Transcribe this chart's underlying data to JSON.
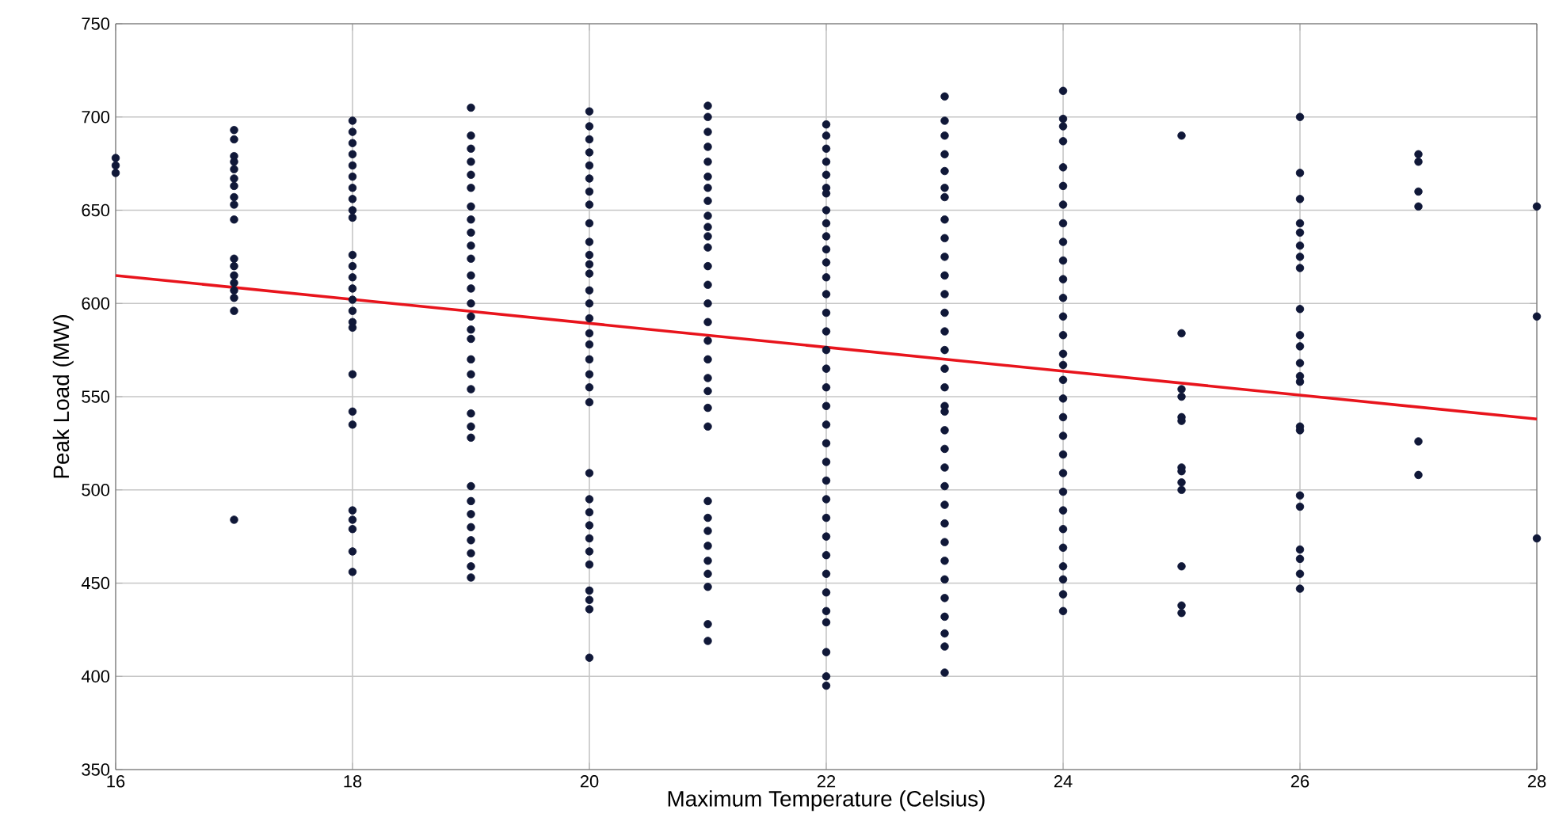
{
  "chart_data": {
    "type": "scatter",
    "xlabel": "Maximum Temperature (Celsius)",
    "ylabel": "Peak Load (MW)",
    "xlim": [
      16,
      28
    ],
    "ylim": [
      350,
      750
    ],
    "xticks": [
      16,
      18,
      20,
      22,
      24,
      26,
      28
    ],
    "yticks": [
      350,
      400,
      450,
      500,
      550,
      600,
      650,
      700,
      750
    ],
    "grid": true,
    "series": [
      {
        "marker": "circle",
        "color": "#101838",
        "x": [
          16,
          16,
          16
        ],
        "values": [
          678,
          674,
          670
        ]
      },
      {
        "marker": "circle",
        "color": "#101838",
        "x": [
          17,
          17,
          17,
          17,
          17,
          17,
          17,
          17,
          17,
          17,
          17,
          17,
          17,
          17,
          17,
          17,
          17,
          17
        ],
        "values": [
          693,
          688,
          679,
          676,
          672,
          667,
          663,
          657,
          653,
          645,
          624,
          620,
          615,
          611,
          607,
          603,
          596,
          484
        ]
      },
      {
        "marker": "circle",
        "color": "#101838",
        "x": [
          18,
          18,
          18,
          18,
          18,
          18,
          18,
          18,
          18,
          18,
          18,
          18,
          18,
          18,
          18,
          18,
          18,
          18,
          18,
          18,
          18,
          18,
          18,
          18,
          18,
          18
        ],
        "values": [
          698,
          692,
          686,
          680,
          674,
          668,
          662,
          656,
          650,
          646,
          626,
          620,
          614,
          608,
          602,
          596,
          590,
          587,
          562,
          542,
          535,
          489,
          484,
          479,
          467,
          456
        ]
      },
      {
        "marker": "circle",
        "color": "#101838",
        "x": [
          19,
          19,
          19,
          19,
          19,
          19,
          19,
          19,
          19,
          19,
          19,
          19,
          19,
          19,
          19,
          19,
          19,
          19,
          19,
          19,
          19,
          19,
          19,
          19,
          19,
          19,
          19,
          19,
          19,
          19,
          19
        ],
        "values": [
          705,
          690,
          683,
          676,
          669,
          662,
          652,
          645,
          638,
          631,
          624,
          615,
          608,
          600,
          593,
          586,
          581,
          570,
          562,
          554,
          541,
          534,
          528,
          502,
          494,
          487,
          480,
          473,
          466,
          459,
          453
        ]
      },
      {
        "marker": "circle",
        "color": "#101838",
        "x": [
          20,
          20,
          20,
          20,
          20,
          20,
          20,
          20,
          20,
          20,
          20,
          20,
          20,
          20,
          20,
          20,
          20,
          20,
          20,
          20,
          20,
          20,
          20,
          20,
          20,
          20,
          20,
          20,
          20,
          20,
          20,
          20,
          20
        ],
        "values": [
          703,
          695,
          688,
          681,
          674,
          667,
          660,
          653,
          643,
          633,
          626,
          621,
          616,
          607,
          600,
          592,
          584,
          578,
          570,
          562,
          555,
          547,
          509,
          495,
          488,
          481,
          474,
          467,
          460,
          446,
          441,
          436,
          410
        ]
      },
      {
        "marker": "circle",
        "color": "#101838",
        "x": [
          21,
          21,
          21,
          21,
          21,
          21,
          21,
          21,
          21,
          21,
          21,
          21,
          21,
          21,
          21,
          21,
          21,
          21,
          21,
          21,
          21,
          21,
          21,
          21,
          21,
          21,
          21,
          21,
          21,
          21,
          21
        ],
        "values": [
          706,
          700,
          692,
          684,
          676,
          668,
          662,
          655,
          647,
          641,
          636,
          630,
          620,
          610,
          600,
          590,
          580,
          570,
          560,
          553,
          544,
          534,
          494,
          485,
          478,
          470,
          462,
          455,
          448,
          428,
          419
        ]
      },
      {
        "marker": "circle",
        "color": "#101838",
        "x": [
          22,
          22,
          22,
          22,
          22,
          22,
          22,
          22,
          22,
          22,
          22,
          22,
          22,
          22,
          22,
          22,
          22,
          22,
          22,
          22,
          22,
          22,
          22,
          22,
          22,
          22,
          22,
          22,
          22,
          22,
          22,
          22,
          22,
          22,
          22
        ],
        "values": [
          696,
          690,
          683,
          676,
          669,
          662,
          659,
          650,
          643,
          636,
          629,
          622,
          614,
          605,
          595,
          585,
          575,
          565,
          555,
          545,
          535,
          525,
          515,
          505,
          495,
          485,
          475,
          465,
          455,
          445,
          435,
          429,
          413,
          400,
          395
        ]
      },
      {
        "marker": "circle",
        "color": "#101838",
        "x": [
          23,
          23,
          23,
          23,
          23,
          23,
          23,
          23,
          23,
          23,
          23,
          23,
          23,
          23,
          23,
          23,
          23,
          23,
          23,
          23,
          23,
          23,
          23,
          23,
          23,
          23,
          23,
          23,
          23,
          23,
          23,
          23,
          23
        ],
        "values": [
          711,
          698,
          690,
          680,
          671,
          662,
          657,
          645,
          635,
          625,
          615,
          605,
          595,
          585,
          575,
          565,
          555,
          545,
          542,
          532,
          522,
          512,
          502,
          492,
          482,
          472,
          462,
          452,
          442,
          432,
          423,
          416,
          402
        ]
      },
      {
        "marker": "circle",
        "color": "#101838",
        "x": [
          24,
          24,
          24,
          24,
          24,
          24,
          24,
          24,
          24,
          24,
          24,
          24,
          24,
          24,
          24,
          24,
          24,
          24,
          24,
          24,
          24,
          24,
          24,
          24,
          24,
          24,
          24,
          24,
          24,
          24
        ],
        "values": [
          714,
          699,
          695,
          687,
          673,
          663,
          653,
          643,
          633,
          623,
          613,
          603,
          593,
          583,
          573,
          567,
          559,
          549,
          539,
          529,
          519,
          509,
          499,
          489,
          479,
          469,
          459,
          452,
          444,
          435
        ]
      },
      {
        "marker": "circle",
        "color": "#101838",
        "x": [
          25,
          25,
          25,
          25,
          25,
          25,
          25,
          25,
          25,
          25,
          25,
          25,
          25
        ],
        "values": [
          690,
          584,
          554,
          550,
          539,
          537,
          512,
          510,
          504,
          500,
          459,
          438,
          434
        ]
      },
      {
        "marker": "circle",
        "color": "#101838",
        "x": [
          26,
          26,
          26,
          26,
          26,
          26,
          26,
          26,
          26,
          26,
          26,
          26,
          26,
          26,
          26,
          26,
          26,
          26,
          26,
          26,
          26,
          26
        ],
        "values": [
          700,
          670,
          656,
          643,
          638,
          631,
          625,
          619,
          597,
          583,
          577,
          568,
          561,
          558,
          534,
          532,
          497,
          491,
          468,
          463,
          455,
          447
        ]
      },
      {
        "marker": "circle",
        "color": "#101838",
        "x": [
          27,
          27,
          27,
          27,
          27,
          27
        ],
        "values": [
          680,
          676,
          660,
          652,
          526,
          508
        ]
      },
      {
        "marker": "circle",
        "color": "#101838",
        "x": [
          28,
          28,
          28
        ],
        "values": [
          652,
          593,
          474
        ]
      },
      {
        "type": "line",
        "marker": "none",
        "color": "#e8141c",
        "x": [
          16,
          28
        ],
        "values": [
          615,
          538
        ]
      }
    ]
  }
}
